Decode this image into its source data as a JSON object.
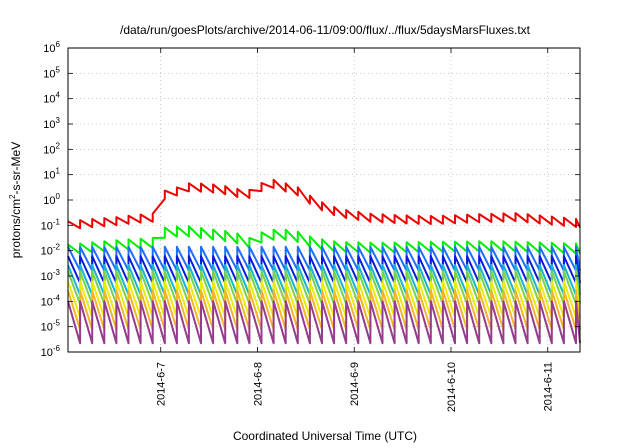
{
  "chart_data": {
    "type": "line",
    "title": "/data/run/goesPlots/archive/2014-06-11/09:00/flux/../flux/5daysMarsFluxes.txt",
    "xlabel": "Coordinated Universal Time (UTC)",
    "ylabel": {
      "prefix": "protons/cm",
      "sup": "2",
      "suffix": "-s-sr-MeV"
    },
    "y_scale": "log",
    "ylim": [
      1e-06,
      1000000.0
    ],
    "y_ticks": [
      {
        "base": "10",
        "exp": "-6"
      },
      {
        "base": "10",
        "exp": "-5"
      },
      {
        "base": "10",
        "exp": "-4"
      },
      {
        "base": "10",
        "exp": "-3"
      },
      {
        "base": "10",
        "exp": "-2"
      },
      {
        "base": "10",
        "exp": "-1"
      },
      {
        "base": "10",
        "exp": "0"
      },
      {
        "base": "10",
        "exp": "1"
      },
      {
        "base": "10",
        "exp": "2"
      },
      {
        "base": "10",
        "exp": "3"
      },
      {
        "base": "10",
        "exp": "4"
      },
      {
        "base": "10",
        "exp": "5"
      },
      {
        "base": "10",
        "exp": "6"
      }
    ],
    "xlim": [
      "2014-06-06T01:00",
      "2014-06-11T08:00"
    ],
    "x_ticks": [
      "2014-6-7",
      "2014-6-8",
      "2014-6-9",
      "2014-6-10",
      "2014-6-11"
    ],
    "grid": true,
    "sawtooth_period_hours": 3,
    "series": [
      {
        "color": "#ee0000",
        "points": [
          [
            "2014-06-06T01:00",
            0.1
          ],
          [
            "2014-06-06T06:00",
            0.12
          ],
          [
            "2014-06-06T12:00",
            0.14
          ],
          [
            "2014-06-06T18:00",
            0.18
          ],
          [
            "2014-06-06T22:00",
            0.2
          ],
          [
            "2014-06-06T23:00",
            0.35
          ],
          [
            "2014-06-06T23:30",
            1.5
          ],
          [
            "2014-06-07T03:00",
            1.8
          ],
          [
            "2014-06-07T06:00",
            3.2
          ],
          [
            "2014-06-07T12:00",
            3.0
          ],
          [
            "2014-06-07T18:00",
            2.2
          ],
          [
            "2014-06-07T21:00",
            1.4
          ],
          [
            "2014-06-08T02:00",
            4.0
          ],
          [
            "2014-06-08T05:00",
            4.5
          ],
          [
            "2014-06-08T06:00",
            3.5
          ],
          [
            "2014-06-08T10:00",
            2.2
          ],
          [
            "2014-06-08T14:00",
            0.8
          ],
          [
            "2014-06-08T18:00",
            0.4
          ],
          [
            "2014-06-08T22:00",
            0.28
          ],
          [
            "2014-06-09T04:00",
            0.2
          ],
          [
            "2014-06-09T12:00",
            0.17
          ],
          [
            "2014-06-09T20:00",
            0.16
          ],
          [
            "2014-06-10T06:00",
            0.19
          ],
          [
            "2014-06-10T16:00",
            0.21
          ],
          [
            "2014-06-11T00:00",
            0.16
          ],
          [
            "2014-06-11T08:00",
            0.12
          ]
        ]
      },
      {
        "color": "#00ee00",
        "points": [
          [
            "2014-06-06T01:00",
            0.011
          ],
          [
            "2014-06-06T12:00",
            0.016
          ],
          [
            "2014-06-06T22:00",
            0.02
          ],
          [
            "2014-06-07T00:00",
            0.05
          ],
          [
            "2014-06-07T06:00",
            0.06
          ],
          [
            "2014-06-07T12:00",
            0.045
          ],
          [
            "2014-06-07T18:00",
            0.035
          ],
          [
            "2014-06-07T22:00",
            0.02
          ],
          [
            "2014-06-08T02:00",
            0.04
          ],
          [
            "2014-06-08T06:00",
            0.045
          ],
          [
            "2014-06-08T10:00",
            0.035
          ],
          [
            "2014-06-08T14:00",
            0.02
          ],
          [
            "2014-06-08T20:00",
            0.014
          ],
          [
            "2014-06-09T06:00",
            0.013
          ],
          [
            "2014-06-09T18:00",
            0.014
          ],
          [
            "2014-06-10T12:00",
            0.015
          ],
          [
            "2014-06-11T08:00",
            0.012
          ]
        ]
      },
      {
        "color": "#1e6eff",
        "points": [
          [
            "2014-06-06T01:00",
            0.0048
          ],
          [
            "2014-06-11T08:00",
            0.0048
          ]
        ]
      },
      {
        "color": "#0a1adc",
        "points": [
          [
            "2014-06-06T01:00",
            0.0018
          ],
          [
            "2014-06-11T08:00",
            0.0018
          ]
        ]
      },
      {
        "color": "#18b4d2",
        "points": [
          [
            "2014-06-06T01:00",
            0.0007
          ],
          [
            "2014-06-11T08:00",
            0.0007
          ]
        ]
      },
      {
        "color": "#7ad24a",
        "points": [
          [
            "2014-06-06T01:00",
            0.00035
          ],
          [
            "2014-06-11T08:00",
            0.00035
          ]
        ]
      },
      {
        "color": "#ecec00",
        "points": [
          [
            "2014-06-06T01:00",
            0.00012
          ],
          [
            "2014-06-11T08:00",
            0.00012
          ]
        ]
      },
      {
        "color": "#f5b428",
        "points": [
          [
            "2014-06-06T01:00",
            4.5e-05
          ],
          [
            "2014-06-11T08:00",
            4.5e-05
          ]
        ]
      },
      {
        "color": "#963c8c",
        "points": [
          [
            "2014-06-06T01:00",
            1.5e-05
          ],
          [
            "2014-06-11T08:00",
            1.5e-05
          ]
        ]
      }
    ]
  }
}
